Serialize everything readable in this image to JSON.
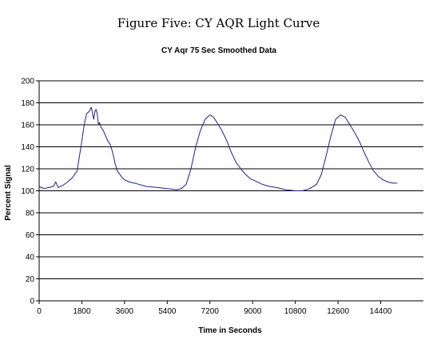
{
  "figure_title": "Figure Five: CY AQR Light Curve",
  "chart_data": {
    "type": "line",
    "title": "CY Aqr 75 Sec Smoothed Data",
    "xlabel": "Time in Seconds",
    "ylabel": "Percent Signal",
    "xlim": [
      0,
      16200
    ],
    "ylim": [
      0,
      200
    ],
    "x_ticks": [
      0,
      1800,
      3600,
      5400,
      7200,
      9000,
      10800,
      12600,
      14400
    ],
    "y_ticks": [
      0,
      20,
      40,
      60,
      80,
      100,
      120,
      140,
      160,
      180,
      200
    ],
    "grid": "horizontal",
    "series_color": "#1f1f8a",
    "series": [
      {
        "x": [
          0,
          200,
          400,
          600,
          700,
          800,
          1000,
          1200,
          1400,
          1600,
          1800,
          1900,
          2000,
          2100,
          2200,
          2300,
          2350,
          2400,
          2450,
          2500,
          2550,
          2600,
          2700,
          2800,
          2900,
          3000,
          3100,
          3200,
          3300,
          3400,
          3500,
          3600,
          3800,
          4000,
          4200,
          4500,
          5000,
          5400,
          5800,
          6000,
          6200,
          6400,
          6600,
          6800,
          7000,
          7200,
          7350,
          7500,
          7700,
          7900,
          8100,
          8300,
          8500,
          8700,
          8900,
          9100,
          9400,
          9700,
          10000,
          10400,
          10800,
          11100,
          11400,
          11700,
          11900,
          12100,
          12300,
          12500,
          12700,
          12900,
          13100,
          13300,
          13500,
          13700,
          13900,
          14100,
          14300,
          14500,
          14700,
          14900,
          15100
        ],
        "values": [
          104,
          102,
          103,
          104,
          108,
          103,
          105,
          108,
          112,
          118,
          145,
          160,
          170,
          172,
          176,
          165,
          172,
          174,
          170,
          160,
          162,
          158,
          155,
          150,
          145,
          142,
          135,
          125,
          118,
          115,
          112,
          110,
          108,
          107,
          106,
          104,
          103,
          102,
          101,
          102,
          106,
          120,
          140,
          155,
          165,
          169,
          167,
          162,
          155,
          146,
          135,
          126,
          120,
          115,
          111,
          109,
          106,
          104,
          103,
          101,
          100,
          100,
          102,
          106,
          115,
          132,
          150,
          165,
          169,
          167,
          160,
          153,
          145,
          135,
          126,
          118,
          113,
          110,
          108,
          107,
          107
        ]
      }
    ]
  }
}
